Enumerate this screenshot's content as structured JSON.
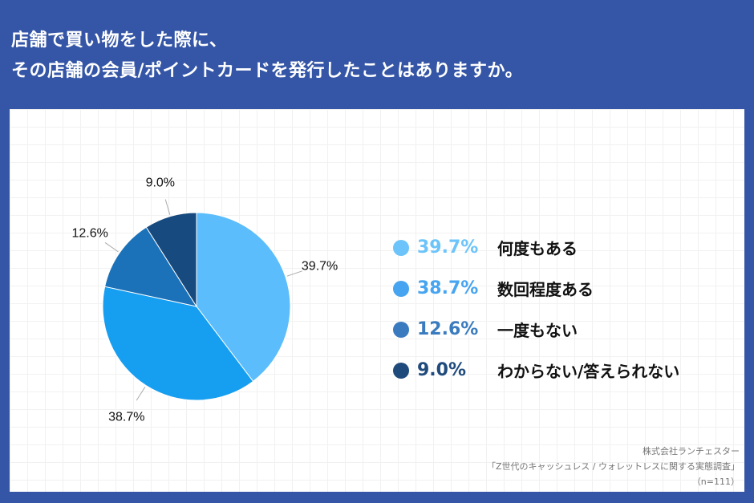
{
  "title": {
    "line1": "店舗で買い物をした際に、",
    "line2": "その店舗の会員/ポイントカードを発行したことはありますか。"
  },
  "chart_data": {
    "type": "pie",
    "title": "店舗で買い物をした際に、その店舗の会員/ポイントカードを発行したことはありますか。",
    "categories": [
      "何度もある",
      "数回程度ある",
      "一度もない",
      "わからない/答えられない"
    ],
    "values": [
      39.7,
      38.7,
      12.6,
      9.0
    ],
    "labels": [
      "39.7%",
      "38.7%",
      "12.6%",
      "9.0%"
    ],
    "colors": [
      "#5bbdfc",
      "#169ef0",
      "#1b72b9",
      "#174a7f"
    ],
    "legend_colors": [
      "#6cc4fa",
      "#46a4f0",
      "#3a7bbf",
      "#1f4a7c"
    ],
    "legend_placement": "right"
  },
  "source": {
    "company": "株式会社ランチェスター",
    "survey": "「Z世代のキャッシュレス / ウォレットレスに関する実態調査」",
    "n": "（n=111）"
  }
}
